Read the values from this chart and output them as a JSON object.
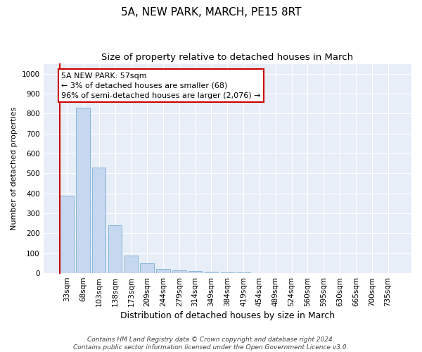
{
  "title1": "5A, NEW PARK, MARCH, PE15 8RT",
  "title2": "Size of property relative to detached houses in March",
  "xlabel": "Distribution of detached houses by size in March",
  "ylabel": "Number of detached properties",
  "categories": [
    "33sqm",
    "68sqm",
    "103sqm",
    "138sqm",
    "173sqm",
    "209sqm",
    "244sqm",
    "279sqm",
    "314sqm",
    "349sqm",
    "384sqm",
    "419sqm",
    "454sqm",
    "489sqm",
    "524sqm",
    "560sqm",
    "595sqm",
    "630sqm",
    "665sqm",
    "700sqm",
    "735sqm"
  ],
  "values": [
    390,
    830,
    530,
    240,
    90,
    50,
    20,
    15,
    10,
    7,
    5,
    3,
    0,
    0,
    0,
    0,
    0,
    0,
    0,
    0,
    0
  ],
  "bar_color": "#c5d8f0",
  "bar_edge_color": "#7aadd4",
  "annotation_box_text": "5A NEW PARK: 57sqm\n← 3% of detached houses are smaller (68)\n96% of semi-detached houses are larger (2,076) →",
  "annotation_box_color": "white",
  "annotation_box_edge_color": "#cc0000",
  "annotation_line_color": "#cc0000",
  "ylim": [
    0,
    1050
  ],
  "yticks": [
    0,
    100,
    200,
    300,
    400,
    500,
    600,
    700,
    800,
    900,
    1000
  ],
  "background_color": "#e8eef8",
  "grid_color": "white",
  "footer_text": "Contains HM Land Registry data © Crown copyright and database right 2024.\nContains public sector information licensed under the Open Government Licence v3.0.",
  "title1_fontsize": 11,
  "title2_fontsize": 9.5,
  "xlabel_fontsize": 9,
  "ylabel_fontsize": 8,
  "tick_fontsize": 7.5,
  "annot_fontsize": 8,
  "footer_fontsize": 6.5
}
